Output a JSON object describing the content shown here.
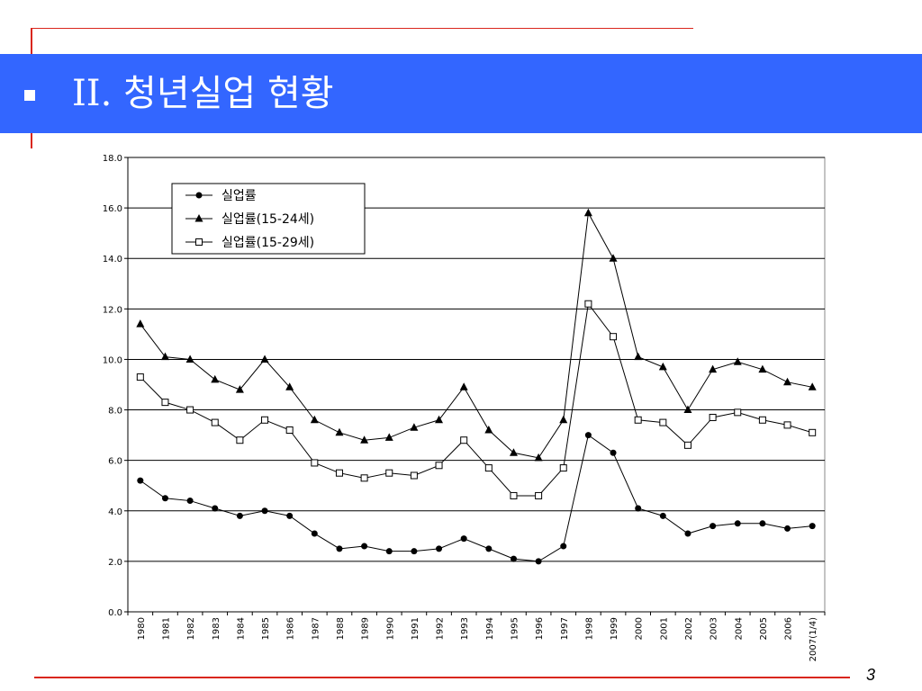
{
  "slide": {
    "title": "II. 청년실업 현황",
    "page_number": "3"
  },
  "colors": {
    "banner": "#3366ff",
    "accent_line": "#d9261c",
    "series": "#000000"
  },
  "chart_data": {
    "type": "line",
    "x": [
      "1980",
      "1981",
      "1982",
      "1983",
      "1984",
      "1985",
      "1986",
      "1987",
      "1988",
      "1989",
      "1990",
      "1991",
      "1992",
      "1993",
      "1994",
      "1995",
      "1996",
      "1997",
      "1998",
      "1999",
      "2000",
      "2001",
      "2002",
      "2003",
      "2004",
      "2005",
      "2006",
      "2007(1/4)"
    ],
    "ylim": [
      0,
      18
    ],
    "yticks": [
      "0.0",
      "2.0",
      "4.0",
      "6.0",
      "8.0",
      "10.0",
      "12.0",
      "14.0",
      "16.0",
      "18.0"
    ],
    "grid": true,
    "legend_position": "top-left",
    "series": [
      {
        "name": "실업률",
        "marker": "filled-circle",
        "values": [
          5.2,
          4.5,
          4.4,
          4.1,
          3.8,
          4.0,
          3.8,
          3.1,
          2.5,
          2.6,
          2.4,
          2.4,
          2.5,
          2.9,
          2.5,
          2.1,
          2.0,
          2.6,
          7.0,
          6.3,
          4.1,
          3.8,
          3.1,
          3.4,
          3.5,
          3.5,
          3.3,
          3.4
        ]
      },
      {
        "name": "실업률(15-24세)",
        "marker": "filled-triangle",
        "values": [
          11.4,
          10.1,
          10.0,
          9.2,
          8.8,
          10.0,
          8.9,
          7.6,
          7.1,
          6.8,
          6.9,
          7.3,
          7.6,
          8.9,
          7.2,
          6.3,
          6.1,
          7.6,
          15.8,
          14.0,
          10.1,
          9.7,
          8.0,
          9.6,
          9.9,
          9.6,
          9.1,
          8.9
        ]
      },
      {
        "name": "실업률(15-29세)",
        "marker": "hollow-square",
        "values": [
          9.3,
          8.3,
          8.0,
          7.5,
          6.8,
          7.6,
          7.2,
          5.9,
          5.5,
          5.3,
          5.5,
          5.4,
          5.8,
          6.8,
          5.7,
          4.6,
          4.6,
          5.7,
          12.2,
          10.9,
          7.6,
          7.5,
          6.6,
          7.7,
          7.9,
          7.6,
          7.4,
          7.1
        ]
      }
    ]
  }
}
